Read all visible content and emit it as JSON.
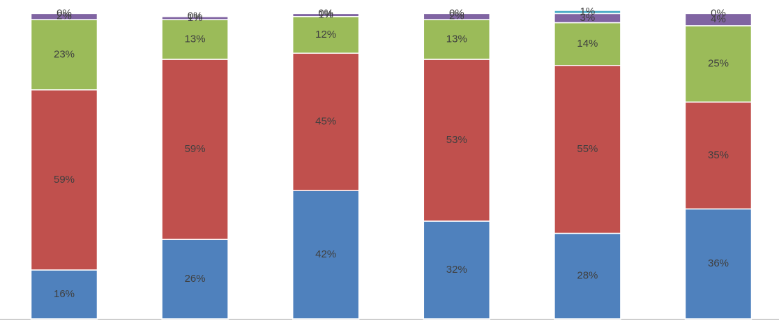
{
  "chart_data": {
    "type": "stacked_bar",
    "categories": [
      null,
      null,
      null,
      null,
      null,
      null
    ],
    "series": [
      {
        "color": "#4f81bd",
        "values": [
          16,
          26,
          42,
          32,
          28,
          36
        ],
        "value_labels": [
          "16%",
          "26%",
          "42%",
          "32%",
          "28%",
          "36%"
        ]
      },
      {
        "color": "#c0504d",
        "values": [
          59,
          59,
          45,
          53,
          55,
          35
        ],
        "value_labels": [
          "59%",
          "59%",
          "45%",
          "53%",
          "55%",
          "35%"
        ]
      },
      {
        "color": "#9bbb59",
        "values": [
          23,
          13,
          12,
          13,
          14,
          25
        ],
        "value_labels": [
          "23%",
          "13%",
          "12%",
          "13%",
          "14%",
          "25%"
        ]
      },
      {
        "color": "#8064a2",
        "values": [
          2,
          1,
          1,
          2,
          3,
          4
        ],
        "value_labels": [
          "2%",
          "1%",
          "1%",
          "2%",
          "3%",
          "4%"
        ]
      },
      {
        "color": "#4bacc6",
        "values": [
          0,
          0,
          0,
          0,
          1,
          0
        ],
        "value_labels": [
          "0%",
          "0%",
          "0%",
          "0%",
          "1%",
          "0%"
        ]
      }
    ]
  }
}
